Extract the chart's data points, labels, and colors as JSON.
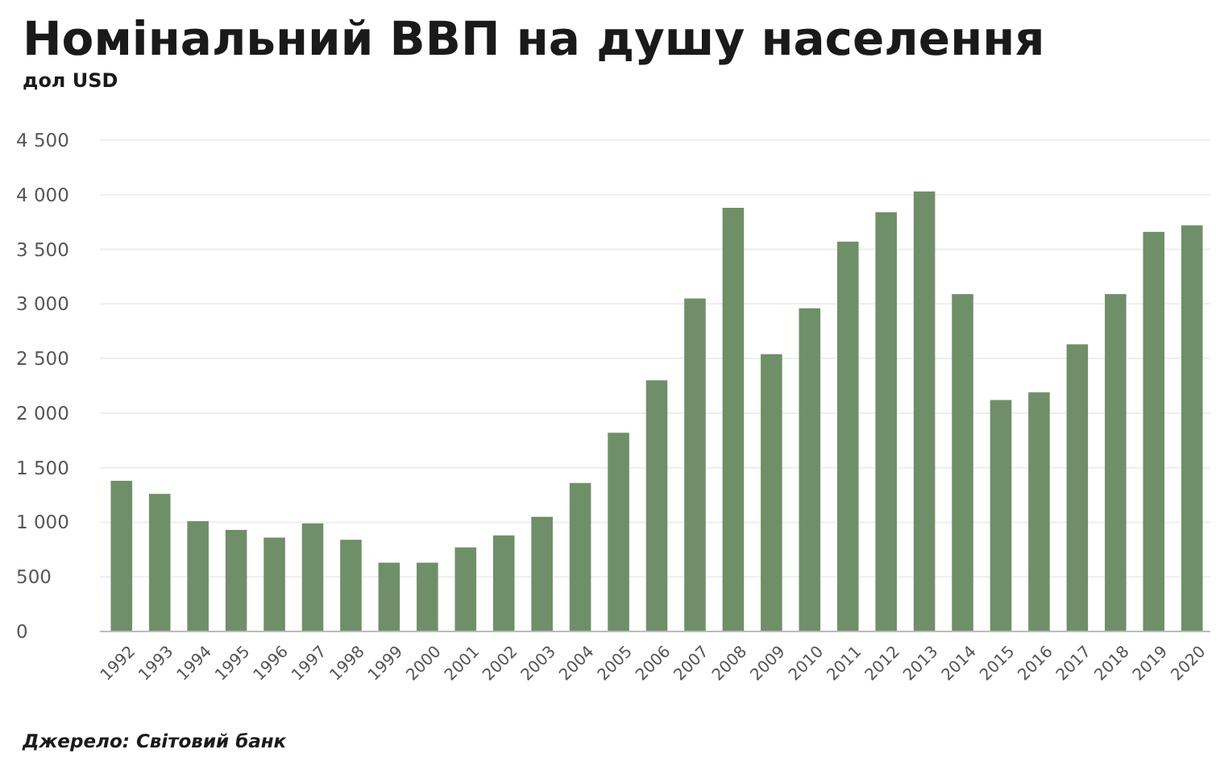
{
  "chart_data": {
    "type": "bar",
    "title": "Номінальний ВВП на душу населення",
    "subtitle": "дол USD",
    "categories": [
      "1992",
      "1993",
      "1994",
      "1995",
      "1996",
      "1997",
      "1998",
      "1999",
      "2000",
      "2001",
      "2002",
      "2003",
      "2004",
      "2005",
      "2006",
      "2007",
      "2008",
      "2009",
      "2010",
      "2011",
      "2012",
      "2013",
      "2014",
      "2015",
      "2016",
      "2017",
      "2018",
      "2019",
      "2020"
    ],
    "values": [
      1380,
      1260,
      1010,
      930,
      860,
      990,
      840,
      630,
      630,
      770,
      880,
      1050,
      1360,
      1820,
      2300,
      3050,
      3880,
      2540,
      2960,
      3570,
      3840,
      4030,
      3090,
      2120,
      2190,
      2630,
      3090,
      3660,
      3720
    ],
    "color": "#6f8f68",
    "ylim": [
      0,
      4500
    ],
    "yticks": [
      0,
      500,
      {
        "value": 1000,
        "label": "1 000"
      },
      {
        "value": 1500,
        "label": "1 500"
      },
      {
        "value": 2000,
        "label": "2 000"
      },
      {
        "value": 2500,
        "label": "2 500"
      },
      {
        "value": 3000,
        "label": "3 000"
      },
      {
        "value": 3500,
        "label": "3 500"
      },
      {
        "value": 4000,
        "label": "4 000"
      },
      {
        "value": 4500,
        "label": "4 500"
      }
    ],
    "grid": "y",
    "annotations": [
      "Джерело: Світовий банк"
    ]
  }
}
